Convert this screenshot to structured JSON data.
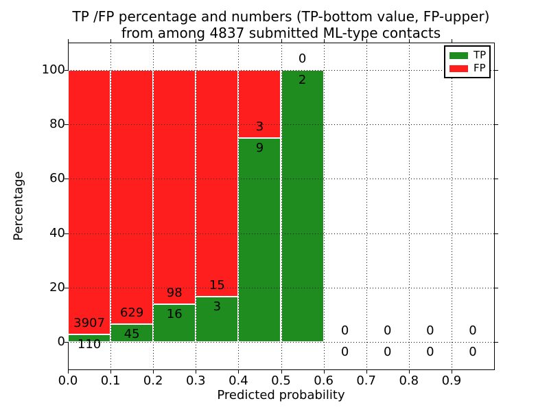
{
  "title": {
    "line1": "TP /FP percentage and numbers (TP-bottom value, FP-upper)",
    "line2": "from among 4837 submitted ML-type contacts"
  },
  "axes": {
    "xlabel": "Predicted probability",
    "ylabel": "Percentage"
  },
  "legend": {
    "items": [
      {
        "label": "TP",
        "color": "#1e8c1e"
      },
      {
        "label": "FP",
        "color": "#ff1e1e"
      }
    ]
  },
  "chart_data": {
    "type": "bar",
    "stacked": true,
    "title": "TP /FP percentage and numbers (TP-bottom value, FP-upper) from among 4837 submitted ML-type contacts",
    "xlabel": "Predicted probability",
    "ylabel": "Percentage",
    "total_contacts": 4837,
    "xlim": [
      0,
      1.0
    ],
    "ylim": [
      -10,
      110
    ],
    "grid": "dotted",
    "legend_position": "upper right",
    "x_tick_values": [
      0,
      0.1,
      0.2,
      0.3,
      0.4,
      0.5,
      0.6,
      0.7,
      0.8,
      0.9
    ],
    "x_tick_labels": [
      "0.0",
      "0.1",
      "0.2",
      "0.3",
      "0.4",
      "0.5",
      "0.6",
      "0.7",
      "0.8",
      "0.9"
    ],
    "y_tick_values": [
      0,
      20,
      40,
      60,
      80,
      100
    ],
    "y_tick_labels": [
      "0",
      "20",
      "40",
      "60",
      "80",
      "100"
    ],
    "bin_ranges": [
      "0.0-0.1",
      "0.1-0.2",
      "0.2-0.3",
      "0.3-0.4",
      "0.4-0.5",
      "0.5-0.6",
      "0.6-0.7",
      "0.7-0.8",
      "0.8-0.9",
      "0.9-1.0"
    ],
    "series": [
      {
        "name": "TP",
        "color": "#1e8c1e",
        "counts": [
          110,
          45,
          16,
          3,
          9,
          2,
          0,
          0,
          0,
          0
        ],
        "pct": [
          2.74,
          6.68,
          14.04,
          16.67,
          75.0,
          100.0,
          0,
          0,
          0,
          0
        ]
      },
      {
        "name": "FP",
        "color": "#ff1e1e",
        "counts": [
          3907,
          629,
          98,
          15,
          3,
          0,
          0,
          0,
          0,
          0
        ],
        "pct": [
          97.26,
          93.32,
          85.96,
          83.33,
          25.0,
          0,
          0,
          0,
          0,
          0
        ]
      }
    ]
  }
}
